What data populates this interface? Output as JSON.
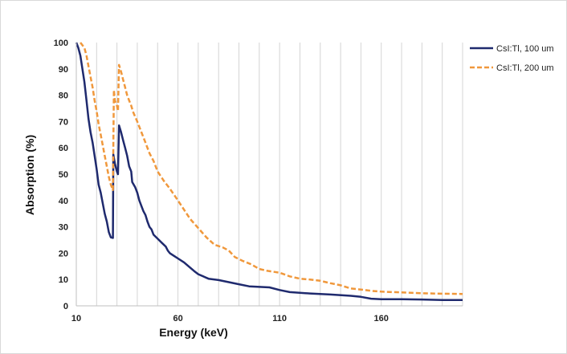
{
  "chart_data": {
    "type": "line",
    "xlabel": "Energy (keV)",
    "ylabel": "Absorption (%)",
    "xlim": [
      10,
      200
    ],
    "ylim": [
      0,
      100
    ],
    "x_ticks": [
      10,
      60,
      110,
      160
    ],
    "y_ticks": [
      0,
      10,
      20,
      30,
      40,
      50,
      60,
      70,
      80,
      90,
      100
    ],
    "x_grid_step": 10,
    "grid": "vertical",
    "legend_position": "top-right",
    "series": [
      {
        "name": "CsI:Tl, 100 um",
        "color": "#1f2a6e",
        "style": "solid",
        "points": [
          [
            10,
            100
          ],
          [
            11,
            98
          ],
          [
            12,
            95
          ],
          [
            13,
            90
          ],
          [
            14,
            85
          ],
          [
            15,
            78
          ],
          [
            16,
            71
          ],
          [
            17,
            66
          ],
          [
            18,
            62
          ],
          [
            19,
            57
          ],
          [
            20,
            52
          ],
          [
            21,
            46
          ],
          [
            22,
            43
          ],
          [
            23,
            39
          ],
          [
            24,
            35
          ],
          [
            25,
            32
          ],
          [
            26,
            28
          ],
          [
            27,
            26
          ],
          [
            28,
            25.8
          ],
          [
            28.2,
            57.5
          ],
          [
            29,
            54
          ],
          [
            30,
            51
          ],
          [
            30.5,
            50
          ],
          [
            31,
            68.5
          ],
          [
            32,
            66
          ],
          [
            33,
            63
          ],
          [
            34,
            60
          ],
          [
            35,
            57
          ],
          [
            36,
            53
          ],
          [
            37,
            51
          ],
          [
            37.5,
            47
          ],
          [
            39,
            45
          ],
          [
            40,
            43
          ],
          [
            41,
            40
          ],
          [
            42,
            38
          ],
          [
            43,
            36
          ],
          [
            44,
            34.5
          ],
          [
            45,
            32
          ],
          [
            46,
            30
          ],
          [
            47,
            29
          ],
          [
            48,
            27
          ],
          [
            50,
            25.5
          ],
          [
            52,
            24
          ],
          [
            54,
            22.5
          ],
          [
            55,
            21
          ],
          [
            56,
            20
          ],
          [
            58,
            19
          ],
          [
            60,
            18
          ],
          [
            63,
            16.5
          ],
          [
            66,
            14.5
          ],
          [
            68,
            13.2
          ],
          [
            70,
            12
          ],
          [
            75,
            10.3
          ],
          [
            80,
            9.8
          ],
          [
            85,
            9
          ],
          [
            90,
            8.2
          ],
          [
            95,
            7.4
          ],
          [
            105,
            7
          ],
          [
            110,
            6
          ],
          [
            115,
            5.2
          ],
          [
            125,
            4.7
          ],
          [
            135,
            4.3
          ],
          [
            145,
            3.8
          ],
          [
            150,
            3.4
          ],
          [
            155,
            2.7
          ],
          [
            160,
            2.5
          ],
          [
            170,
            2.5
          ],
          [
            180,
            2.4
          ],
          [
            190,
            2.2
          ],
          [
            200,
            2.2
          ]
        ]
      },
      {
        "name": "CsI:Tl, 200 um",
        "color": "#f0983c",
        "style": "dashed",
        "points": [
          [
            12,
            100
          ],
          [
            14,
            98
          ],
          [
            15,
            95
          ],
          [
            16,
            91
          ],
          [
            17,
            87
          ],
          [
            18,
            83
          ],
          [
            19,
            78
          ],
          [
            20,
            74
          ],
          [
            21,
            69
          ],
          [
            22,
            65
          ],
          [
            23,
            61
          ],
          [
            24,
            57
          ],
          [
            25,
            53
          ],
          [
            26,
            49
          ],
          [
            27,
            46
          ],
          [
            28,
            44
          ],
          [
            28.5,
            82
          ],
          [
            29,
            78
          ],
          [
            30,
            76
          ],
          [
            30.5,
            74
          ],
          [
            31,
            91.5
          ],
          [
            32,
            89
          ],
          [
            33,
            86
          ],
          [
            34,
            83
          ],
          [
            35,
            80
          ],
          [
            36,
            78
          ],
          [
            37,
            76
          ],
          [
            38,
            73.5
          ],
          [
            40,
            70
          ],
          [
            42,
            66
          ],
          [
            44,
            62
          ],
          [
            46,
            58
          ],
          [
            48,
            55
          ],
          [
            50,
            51
          ],
          [
            53,
            47.5
          ],
          [
            56,
            44.5
          ],
          [
            60,
            40
          ],
          [
            63,
            36.5
          ],
          [
            66,
            33
          ],
          [
            70,
            29.5
          ],
          [
            74,
            26
          ],
          [
            78,
            23.2
          ],
          [
            82,
            22.2
          ],
          [
            85,
            21
          ],
          [
            88,
            18.5
          ],
          [
            92,
            17
          ],
          [
            96,
            15.8
          ],
          [
            100,
            14
          ],
          [
            104,
            13.3
          ],
          [
            110,
            12.6
          ],
          [
            115,
            11.2
          ],
          [
            120,
            10.3
          ],
          [
            125,
            10
          ],
          [
            130,
            9.5
          ],
          [
            135,
            8.6
          ],
          [
            140,
            7.8
          ],
          [
            145,
            6.6
          ],
          [
            150,
            6.2
          ],
          [
            155,
            5.7
          ],
          [
            160,
            5.4
          ],
          [
            170,
            5.1
          ],
          [
            180,
            4.8
          ],
          [
            190,
            4.6
          ],
          [
            200,
            4.5
          ]
        ]
      }
    ]
  }
}
